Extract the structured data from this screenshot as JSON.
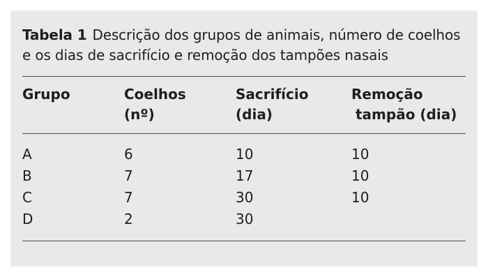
{
  "caption": {
    "label": "Tabela 1",
    "text": "Descrição dos grupos de animais, número de coelhos e os dias de sacrifício e remoção dos tampões nasais"
  },
  "table": {
    "headers": [
      {
        "line1": "Grupo",
        "line2": ""
      },
      {
        "line1": "Coelhos",
        "line2": "(nº)"
      },
      {
        "line1": "Sacrifício",
        "line2": "(dia)"
      },
      {
        "line1": "Remoção",
        "line2": "tampão (dia)"
      }
    ],
    "rows": [
      [
        "A",
        "6",
        "10",
        "10"
      ],
      [
        "B",
        "7",
        "17",
        "10"
      ],
      [
        "C",
        "7",
        "30",
        "10"
      ],
      [
        "D",
        "2",
        "30",
        ""
      ]
    ]
  }
}
